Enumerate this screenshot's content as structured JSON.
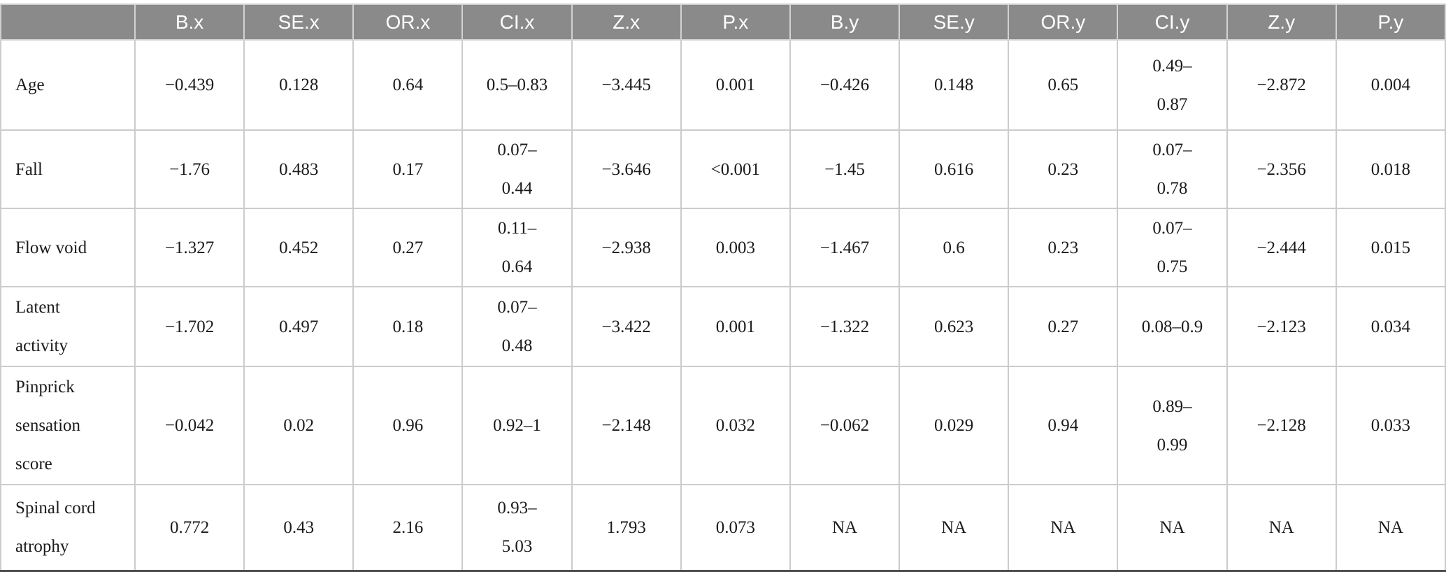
{
  "colors": {
    "header_bg": "#8a8a8a",
    "header_text": "#ffffff",
    "grid_line": "#cccccc",
    "bottom_rule": "#4d4d4d",
    "body_text": "#1b1b1b"
  },
  "table": {
    "columns": [
      "",
      "B.x",
      "SE.x",
      "OR.x",
      "CI.x",
      "Z.x",
      "P.x",
      "B.y",
      "SE.y",
      "OR.y",
      "CI.y",
      "Z.y",
      "P.y"
    ],
    "rows": [
      {
        "label": "Age",
        "cells": [
          "−0.439",
          "0.128",
          "0.64",
          "0.5–0.83",
          "−3.445",
          "0.001",
          "−0.426",
          "0.148",
          "0.65",
          "0.49–\n0.87",
          "−2.872",
          "0.004"
        ]
      },
      {
        "label": "Fall",
        "cells": [
          "−1.76",
          "0.483",
          "0.17",
          "0.07–\n0.44",
          "−3.646",
          "<0.001",
          "−1.45",
          "0.616",
          "0.23",
          "0.07–\n0.78",
          "−2.356",
          "0.018"
        ]
      },
      {
        "label": "Flow void",
        "cells": [
          "−1.327",
          "0.452",
          "0.27",
          "0.11–\n0.64",
          "−2.938",
          "0.003",
          "−1.467",
          "0.6",
          "0.23",
          "0.07–\n0.75",
          "−2.444",
          "0.015"
        ]
      },
      {
        "label": "Latent\nactivity",
        "cells": [
          "−1.702",
          "0.497",
          "0.18",
          "0.07–\n0.48",
          "−3.422",
          "0.001",
          "−1.322",
          "0.623",
          "0.27",
          "0.08–0.9",
          "−2.123",
          "0.034"
        ]
      },
      {
        "label": "Pinprick\nsensation\nscore",
        "cells": [
          "−0.042",
          "0.02",
          "0.96",
          "0.92–1",
          "−2.148",
          "0.032",
          "−0.062",
          "0.029",
          "0.94",
          "0.89–\n0.99",
          "−2.128",
          "0.033"
        ]
      },
      {
        "label": "Spinal cord\natrophy",
        "cells": [
          "0.772",
          "0.43",
          "2.16",
          "0.93–\n5.03",
          "1.793",
          "0.073",
          "NA",
          "NA",
          "NA",
          "NA",
          "NA",
          "NA"
        ]
      }
    ]
  }
}
